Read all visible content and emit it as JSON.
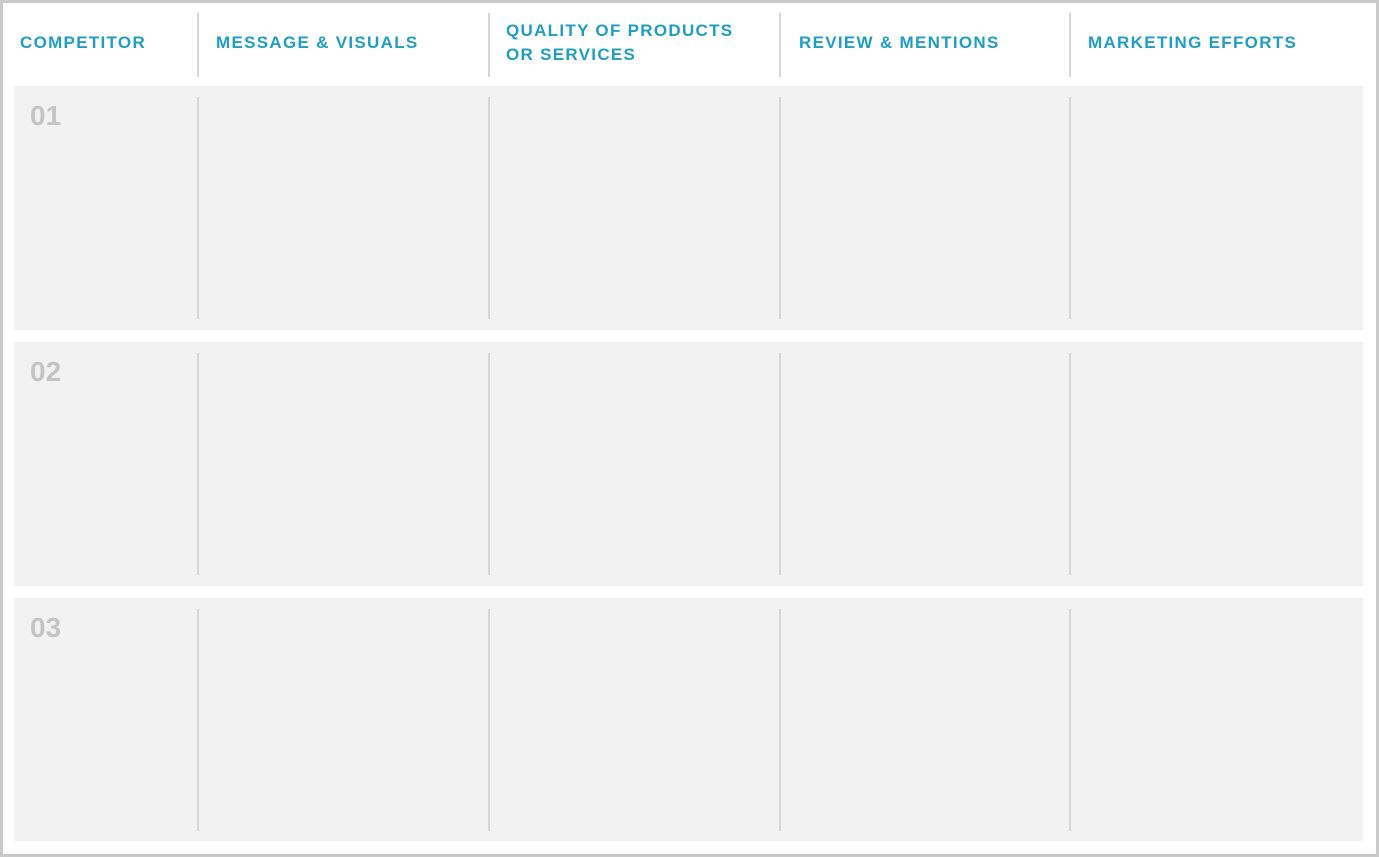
{
  "header": {
    "columns": [
      "COMPETITOR",
      "MESSAGE & VISUALS",
      "QUALITY OF PRODUCTS OR SERVICES",
      "REVIEW & MENTIONS",
      "MARKETING EFFORTS"
    ]
  },
  "rows": [
    {
      "number": "01"
    },
    {
      "number": "02"
    },
    {
      "number": "03"
    }
  ],
  "colors": {
    "header_text": "#1f9dc2",
    "row_bg": "#f2f2f2",
    "row_number": "#c4c4c4",
    "divider": "#d6d6d6"
  }
}
